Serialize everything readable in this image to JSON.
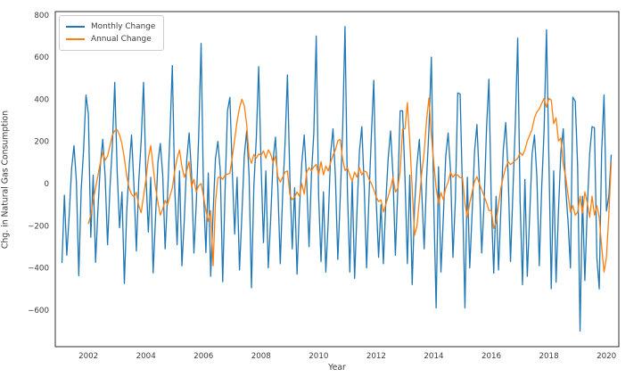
{
  "figure": {
    "background": "#ffffff"
  },
  "colors": {
    "monthly_series": "#1f77b4",
    "annual_series": "#ff7f0e",
    "spine": "#2e2e2e",
    "text": "#3b3b3b",
    "legend_border": "#cccccc"
  },
  "legend": {
    "items": [
      {
        "label": "Monthly Change",
        "color": "#1f77b4"
      },
      {
        "label": "Annual Change",
        "color": "#ff7f0e"
      }
    ]
  },
  "chart_data": {
    "type": "line",
    "title": "",
    "xlabel": "Year",
    "ylabel": "Chg. in Natural Gas Consumption",
    "xlim": [
      2000.85,
      2020.43
    ],
    "ylim": [
      -774,
      816
    ],
    "xticks": [
      2002,
      2004,
      2006,
      2008,
      2010,
      2012,
      2014,
      2016,
      2018,
      2020
    ],
    "yticks": [
      800,
      600,
      400,
      200,
      0,
      -200,
      -400,
      -600
    ],
    "grid": false,
    "legend_position": "upper-left",
    "x_unit": "decimal_year_monthly",
    "series": [
      {
        "name": "Monthly Change",
        "color": "#1f77b4",
        "start_year": 2001,
        "start_month": 2,
        "step_months": 1,
        "values": [
          -375,
          -55,
          -340,
          -150,
          70,
          180,
          10,
          -437,
          -30,
          160,
          420,
          330,
          -255,
          40,
          -374,
          -120,
          90,
          210,
          30,
          -290,
          -20,
          180,
          480,
          60,
          -210,
          -40,
          -474,
          -130,
          80,
          230,
          -10,
          -320,
          10,
          200,
          480,
          40,
          -230,
          30,
          -424,
          -160,
          100,
          190,
          40,
          -310,
          -60,
          230,
          560,
          -20,
          -290,
          60,
          -390,
          -170,
          110,
          240,
          50,
          -330,
          -90,
          230,
          665,
          -40,
          -327,
          50,
          -440,
          -140,
          120,
          200,
          60,
          -466,
          -30,
          345,
          409,
          60,
          -240,
          30,
          -410,
          -150,
          130,
          250,
          40,
          -495,
          -10,
          210,
          555,
          90,
          -280,
          60,
          -400,
          -170,
          110,
          220,
          -20,
          -380,
          -50,
          190,
          515,
          30,
          -310,
          -20,
          -430,
          -120,
          100,
          230,
          20,
          -300,
          40,
          240,
          700,
          -60,
          -370,
          -40,
          -420,
          -180,
          140,
          260,
          30,
          -360,
          -70,
          250,
          745,
          -30,
          -420,
          20,
          -450,
          -130,
          150,
          270,
          -10,
          -400,
          -60,
          230,
          490,
          -80,
          -350,
          -100,
          -380,
          -90,
          120,
          250,
          40,
          -340,
          -30,
          345,
          345,
          30,
          -380,
          40,
          -479,
          -110,
          90,
          210,
          -40,
          -310,
          20,
          260,
          600,
          -90,
          -590,
          80,
          -420,
          -160,
          130,
          240,
          60,
          -350,
          -80,
          430,
          425,
          -50,
          -590,
          30,
          -400,
          -140,
          150,
          280,
          20,
          -330,
          -90,
          260,
          495,
          -100,
          -425,
          -60,
          -410,
          -120,
          160,
          290,
          50,
          -370,
          -40,
          280,
          690,
          -80,
          -480,
          20,
          -440,
          -150,
          140,
          230,
          30,
          -390,
          -20,
          250,
          730,
          120,
          -499,
          60,
          -468,
          -130,
          150,
          260,
          -20,
          -181,
          -400,
          410,
          390,
          80,
          -700,
          -60,
          -460,
          -120,
          140,
          270,
          265,
          -350,
          -500,
          150,
          420,
          -130,
          -60,
          135
        ]
      },
      {
        "name": "Annual Change",
        "color": "#ff7f0e",
        "start_year": 2002,
        "start_month": 1,
        "step_months": 1,
        "values": [
          -190,
          -150,
          -80,
          -20,
          40,
          100,
          146,
          111,
          130,
          180,
          230,
          251,
          255,
          230,
          188,
          120,
          33,
          -22,
          -51,
          -63,
          -42,
          -105,
          -138,
          -60,
          20,
          120,
          180,
          80,
          -20,
          -90,
          -150,
          -120,
          -80,
          -100,
          -60,
          -20,
          60,
          120,
          160,
          80,
          30,
          60,
          104,
          -15,
          20,
          -40,
          -10,
          0,
          -60,
          -128,
          -180,
          -128,
          -390,
          -86,
          27,
          33,
          20,
          40,
          45,
          49,
          125,
          210,
          295,
          358,
          400,
          371,
          282,
          126,
          96,
          138,
          120,
          140,
          134,
          155,
          120,
          160,
          140,
          100,
          130,
          33,
          7,
          30,
          54,
          60,
          -52,
          -77,
          -64,
          -40,
          -60,
          0,
          -50,
          54,
          75,
          60,
          80,
          91,
          41,
          104,
          41,
          83,
          60,
          100,
          134,
          160,
          202,
          210,
          117,
          62,
          75,
          40,
          11,
          54,
          30,
          75,
          41,
          60,
          54,
          20,
          0,
          -30,
          -64,
          -85,
          -77,
          -135,
          -100,
          -60,
          -22,
          30,
          -40,
          -22,
          60,
          258,
          260,
          384,
          200,
          -22,
          -245,
          -203,
          -77,
          50,
          147,
          300,
          406,
          228,
          100,
          -22,
          -97,
          -43,
          -77,
          -22,
          7,
          54,
          30,
          45,
          40,
          28,
          28,
          -93,
          -160,
          -93,
          -40,
          10,
          33,
          0,
          -30,
          -60,
          -90,
          -128,
          -128,
          -213,
          -183,
          -100,
          -22,
          33,
          75,
          104,
          90,
          100,
          110,
          120,
          147,
          134,
          160,
          202,
          230,
          258,
          312,
          340,
          354,
          380,
          404,
          362,
          404,
          396,
          284,
          312,
          202,
          216,
          91,
          33,
          -52,
          -135,
          -105,
          -150,
          -135,
          -60,
          -140,
          -40,
          -90,
          -160,
          -60,
          -150,
          -105,
          -160,
          -300,
          -420,
          -350,
          -150,
          100
        ]
      }
    ]
  }
}
